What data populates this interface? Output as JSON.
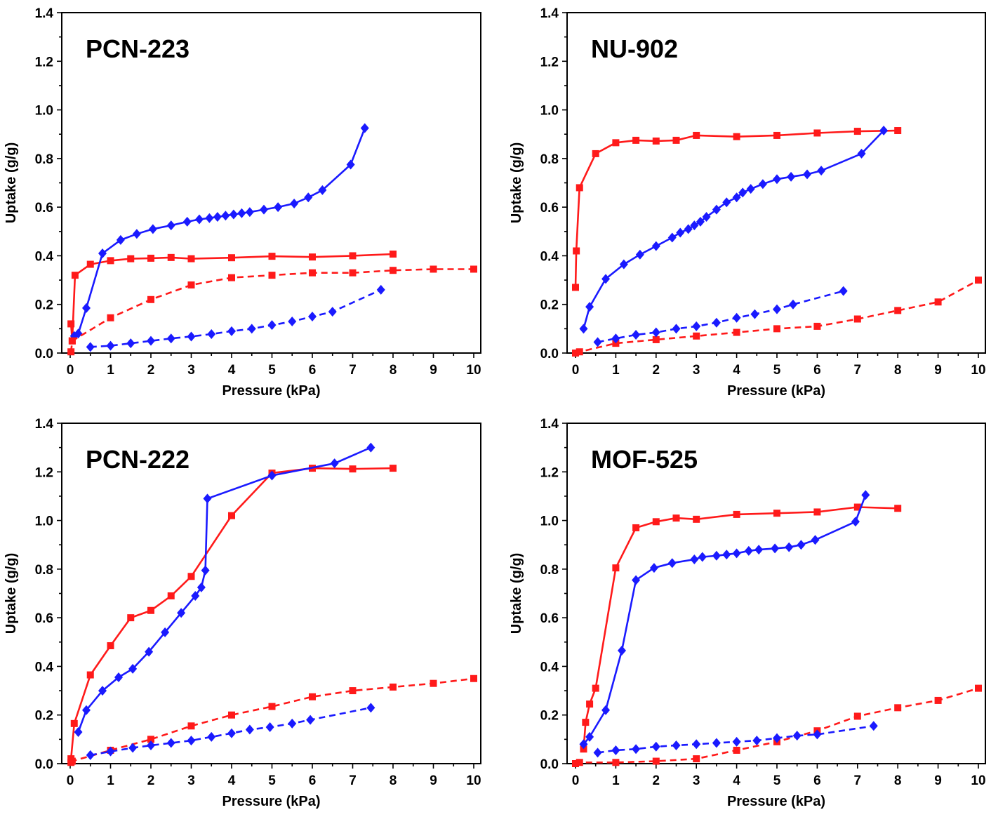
{
  "colors": {
    "red": "#ff1a1a",
    "blue": "#1a1aff"
  },
  "chart_data": [
    {
      "type": "line",
      "title": "PCN-223",
      "xlabel": "Pressure (kPa)",
      "ylabel": "Uptake (g/g)",
      "xlim": [
        0,
        10
      ],
      "ylim": [
        0,
        1.4
      ],
      "xticks": [
        "0",
        "1",
        "2",
        "3",
        "4",
        "5",
        "6",
        "7",
        "8",
        "9",
        "10"
      ],
      "yticks": [
        "0.0",
        "0.2",
        "0.4",
        "0.6",
        "0.8",
        "1.0",
        "1.2",
        "1.4"
      ],
      "series": [
        {
          "color": "red",
          "marker": "square",
          "dashed": false,
          "x": [
            0.02,
            0.05,
            0.12,
            0.5,
            1.0,
            1.5,
            2.0,
            2.5,
            3.0,
            4.0,
            5.0,
            6.0,
            7.0,
            8.0
          ],
          "y": [
            0.12,
            0.05,
            0.32,
            0.365,
            0.38,
            0.388,
            0.39,
            0.393,
            0.388,
            0.392,
            0.398,
            0.395,
            0.4,
            0.407
          ]
        },
        {
          "color": "blue",
          "marker": "diamond",
          "dashed": false,
          "x": [
            0.1,
            0.2,
            0.4,
            0.8,
            1.25,
            1.65,
            2.05,
            2.5,
            2.9,
            3.2,
            3.45,
            3.65,
            3.85,
            4.05,
            4.25,
            4.45,
            4.8,
            5.15,
            5.55,
            5.9,
            6.25,
            6.95,
            7.3
          ],
          "y": [
            0.07,
            0.08,
            0.185,
            0.41,
            0.465,
            0.49,
            0.51,
            0.525,
            0.54,
            0.55,
            0.555,
            0.56,
            0.565,
            0.57,
            0.575,
            0.58,
            0.59,
            0.6,
            0.615,
            0.64,
            0.67,
            0.775,
            0.925
          ]
        },
        {
          "color": "red",
          "marker": "square",
          "dashed": true,
          "x": [
            0.02,
            0.05,
            1.0,
            2.0,
            3.0,
            4.0,
            5.0,
            6.0,
            7.0,
            8.0,
            9.0,
            10.0
          ],
          "y": [
            0.005,
            0.05,
            0.145,
            0.22,
            0.28,
            0.31,
            0.32,
            0.33,
            0.33,
            0.34,
            0.345,
            0.345
          ]
        },
        {
          "color": "blue",
          "marker": "diamond",
          "dashed": true,
          "x": [
            0.5,
            1.0,
            1.5,
            2.0,
            2.5,
            3.0,
            3.5,
            4.0,
            4.5,
            5.0,
            5.5,
            6.0,
            6.5,
            7.7
          ],
          "y": [
            0.025,
            0.03,
            0.04,
            0.05,
            0.06,
            0.068,
            0.078,
            0.09,
            0.1,
            0.115,
            0.13,
            0.15,
            0.17,
            0.26
          ]
        }
      ]
    },
    {
      "type": "line",
      "title": "NU-902",
      "xlabel": "Pressure (kPa)",
      "ylabel": "Uptake (g/g)",
      "xlim": [
        0,
        10
      ],
      "ylim": [
        0,
        1.4
      ],
      "xticks": [
        "0",
        "1",
        "2",
        "3",
        "4",
        "5",
        "6",
        "7",
        "8",
        "9",
        "10"
      ],
      "yticks": [
        "0.0",
        "0.2",
        "0.4",
        "0.6",
        "0.8",
        "1.0",
        "1.2",
        "1.4"
      ],
      "series": [
        {
          "color": "red",
          "marker": "square",
          "dashed": false,
          "x": [
            0.0,
            0.02,
            0.1,
            0.5,
            1.0,
            1.5,
            2.0,
            2.5,
            3.0,
            4.0,
            5.0,
            6.0,
            7.0,
            8.0
          ],
          "y": [
            0.27,
            0.42,
            0.68,
            0.82,
            0.865,
            0.875,
            0.872,
            0.875,
            0.895,
            0.89,
            0.895,
            0.905,
            0.912,
            0.915
          ]
        },
        {
          "color": "blue",
          "marker": "diamond",
          "dashed": false,
          "x": [
            0.2,
            0.35,
            0.75,
            1.2,
            1.6,
            2.0,
            2.4,
            2.6,
            2.8,
            2.95,
            3.1,
            3.25,
            3.5,
            3.75,
            4.0,
            4.15,
            4.35,
            4.65,
            5.0,
            5.35,
            5.75,
            6.1,
            7.1,
            7.65
          ],
          "y": [
            0.1,
            0.19,
            0.305,
            0.365,
            0.405,
            0.44,
            0.475,
            0.495,
            0.51,
            0.525,
            0.54,
            0.56,
            0.59,
            0.62,
            0.64,
            0.66,
            0.675,
            0.695,
            0.715,
            0.725,
            0.735,
            0.75,
            0.82,
            0.915
          ]
        },
        {
          "color": "red",
          "marker": "square",
          "dashed": true,
          "x": [
            0.0,
            0.1,
            1.0,
            2.0,
            3.0,
            4.0,
            5.0,
            6.0,
            7.0,
            8.0,
            9.0,
            10.0
          ],
          "y": [
            0.0,
            0.005,
            0.04,
            0.055,
            0.07,
            0.085,
            0.1,
            0.11,
            0.14,
            0.175,
            0.21,
            0.3
          ]
        },
        {
          "color": "blue",
          "marker": "diamond",
          "dashed": true,
          "x": [
            0.55,
            1.0,
            1.5,
            2.0,
            2.5,
            3.0,
            3.5,
            4.0,
            4.45,
            5.0,
            5.4,
            6.65
          ],
          "y": [
            0.045,
            0.06,
            0.075,
            0.085,
            0.1,
            0.11,
            0.125,
            0.145,
            0.16,
            0.18,
            0.2,
            0.255
          ]
        }
      ]
    },
    {
      "type": "line",
      "title": "PCN-222",
      "xlabel": "Pressure (kPa)",
      "ylabel": "Uptake (g/g)",
      "xlim": [
        0,
        10
      ],
      "ylim": [
        0,
        1.4
      ],
      "xticks": [
        "0",
        "1",
        "2",
        "3",
        "4",
        "5",
        "6",
        "7",
        "8",
        "9",
        "10"
      ],
      "yticks": [
        "0.0",
        "0.2",
        "0.4",
        "0.6",
        "0.8",
        "1.0",
        "1.2",
        "1.4"
      ],
      "series": [
        {
          "color": "red",
          "marker": "square",
          "dashed": false,
          "x": [
            0.02,
            0.1,
            0.5,
            1.0,
            1.5,
            2.0,
            2.5,
            3.0,
            4.0,
            5.0,
            6.0,
            7.0,
            8.0
          ],
          "y": [
            0.02,
            0.165,
            0.365,
            0.485,
            0.6,
            0.63,
            0.69,
            0.77,
            1.02,
            1.195,
            1.215,
            1.212,
            1.215
          ]
        },
        {
          "color": "blue",
          "marker": "diamond",
          "dashed": false,
          "x": [
            0.2,
            0.4,
            0.8,
            1.2,
            1.55,
            1.95,
            2.35,
            2.75,
            3.1,
            3.25,
            3.35,
            3.4,
            5.0,
            6.55,
            7.45
          ],
          "y": [
            0.13,
            0.22,
            0.3,
            0.355,
            0.39,
            0.46,
            0.54,
            0.62,
            0.69,
            0.725,
            0.795,
            1.09,
            1.185,
            1.235,
            1.3
          ]
        },
        {
          "color": "red",
          "marker": "square",
          "dashed": true,
          "x": [
            0.02,
            0.05,
            1.0,
            2.0,
            3.0,
            4.0,
            5.0,
            6.0,
            7.0,
            8.0,
            9.0,
            10.0
          ],
          "y": [
            0.005,
            0.01,
            0.055,
            0.1,
            0.155,
            0.2,
            0.235,
            0.275,
            0.3,
            0.315,
            0.33,
            0.35
          ]
        },
        {
          "color": "blue",
          "marker": "diamond",
          "dashed": true,
          "x": [
            0.5,
            1.0,
            1.55,
            2.0,
            2.5,
            3.0,
            3.5,
            4.0,
            4.45,
            4.95,
            5.5,
            5.95,
            7.45
          ],
          "y": [
            0.035,
            0.05,
            0.065,
            0.075,
            0.085,
            0.095,
            0.11,
            0.125,
            0.14,
            0.15,
            0.165,
            0.18,
            0.23
          ]
        }
      ]
    },
    {
      "type": "line",
      "title": "MOF-525",
      "xlabel": "Pressure (kPa)",
      "ylabel": "Uptake (g/g)",
      "xlim": [
        0,
        10
      ],
      "ylim": [
        0,
        1.4
      ],
      "xticks": [
        "0",
        "1",
        "2",
        "3",
        "4",
        "5",
        "6",
        "7",
        "8",
        "9",
        "10"
      ],
      "yticks": [
        "0.0",
        "0.2",
        "0.4",
        "0.6",
        "0.8",
        "1.0",
        "1.2",
        "1.4"
      ],
      "series": [
        {
          "color": "red",
          "marker": "square",
          "dashed": false,
          "x": [
            0.2,
            0.25,
            0.35,
            0.5,
            1.0,
            1.5,
            2.0,
            2.5,
            3.0,
            4.0,
            5.0,
            6.0,
            7.0,
            8.0
          ],
          "y": [
            0.06,
            0.17,
            0.245,
            0.31,
            0.805,
            0.97,
            0.995,
            1.01,
            1.005,
            1.025,
            1.03,
            1.035,
            1.055,
            1.05
          ]
        },
        {
          "color": "blue",
          "marker": "diamond",
          "dashed": false,
          "x": [
            0.2,
            0.35,
            0.75,
            1.15,
            1.5,
            1.95,
            2.4,
            2.95,
            3.15,
            3.5,
            3.75,
            4.0,
            4.3,
            4.55,
            4.95,
            5.3,
            5.6,
            5.95,
            6.95,
            7.2
          ],
          "y": [
            0.08,
            0.11,
            0.22,
            0.465,
            0.755,
            0.805,
            0.825,
            0.84,
            0.85,
            0.855,
            0.86,
            0.865,
            0.875,
            0.88,
            0.885,
            0.89,
            0.9,
            0.92,
            0.995,
            1.105
          ]
        },
        {
          "color": "red",
          "marker": "square",
          "dashed": true,
          "x": [
            0.0,
            0.1,
            1.0,
            2.0,
            3.0,
            4.0,
            5.0,
            6.0,
            7.0,
            8.0,
            9.0,
            10.0
          ],
          "y": [
            0.0,
            0.005,
            0.005,
            0.01,
            0.02,
            0.055,
            0.09,
            0.135,
            0.195,
            0.23,
            0.26,
            0.31
          ]
        },
        {
          "color": "blue",
          "marker": "diamond",
          "dashed": true,
          "x": [
            0.55,
            1.0,
            1.5,
            2.0,
            2.5,
            3.0,
            3.5,
            4.0,
            4.5,
            5.0,
            5.5,
            6.0,
            7.4
          ],
          "y": [
            0.045,
            0.055,
            0.06,
            0.07,
            0.075,
            0.08,
            0.085,
            0.09,
            0.095,
            0.105,
            0.115,
            0.12,
            0.155
          ]
        }
      ]
    }
  ]
}
